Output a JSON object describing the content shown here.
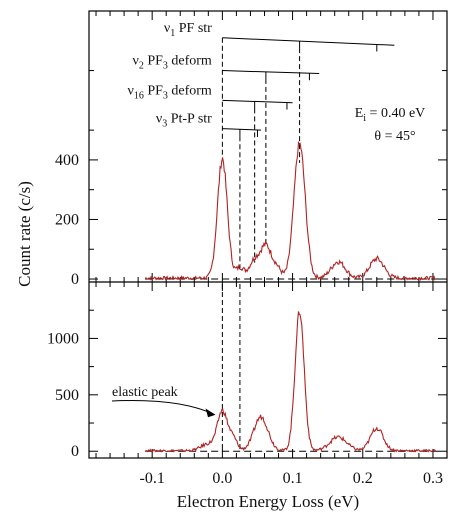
{
  "chart_data": {
    "type": "line",
    "xlabel": "Electron Energy Loss (eV)",
    "ylabel": "Count rate (c/s)",
    "xlim": [
      -0.19,
      0.32
    ],
    "x_ticks": [
      -0.1,
      0.0,
      0.1,
      0.2,
      0.3
    ],
    "x_tick_labels": [
      "-0.1",
      "0.0",
      "0.1",
      "0.2",
      "0.3"
    ],
    "line_color": "#b22222",
    "panels": [
      {
        "name": "top",
        "ylim": [
          -10,
          900
        ],
        "y_ticks": [
          0,
          200,
          400
        ],
        "y_tick_labels": [
          "0",
          "200",
          "400"
        ],
        "conditions": [
          "Eᵢ = 0.40 eV",
          "θ = 45°"
        ],
        "peaks": [
          {
            "center": 0.0,
            "height": 400,
            "width": 0.007
          },
          {
            "center": 0.025,
            "height": 35,
            "width": 0.006
          },
          {
            "center": 0.045,
            "height": 55,
            "width": 0.007
          },
          {
            "center": 0.062,
            "height": 110,
            "width": 0.008
          },
          {
            "center": 0.078,
            "height": 30,
            "width": 0.006
          },
          {
            "center": 0.11,
            "height": 450,
            "width": 0.008
          },
          {
            "center": 0.165,
            "height": 55,
            "width": 0.01
          },
          {
            "center": 0.22,
            "height": 65,
            "width": 0.01
          }
        ],
        "progressions": [
          {
            "mode_label": {
              "sym": "ν",
              "sub": "1",
              "text": "PF str"
            },
            "level": 810,
            "x_start": 0.0,
            "x_end": 0.245,
            "end_level": 785,
            "ticks": [
              0.11,
              0.22
            ],
            "dropline_to": 390
          },
          {
            "mode_label": {
              "sym": "ν",
              "sub": "2",
              "text": "PF",
              "sub2": "3",
              "text2": "deform"
            },
            "level": 700,
            "x_start": 0.0,
            "x_end": 0.138,
            "end_level": 690,
            "ticks": [
              0.062,
              0.124
            ],
            "dropline_to": 110
          },
          {
            "mode_label": {
              "sym": "ν",
              "sub": "16",
              "text": "PF",
              "sub2": "3",
              "text2": "deform"
            },
            "level": 600,
            "x_start": 0.0,
            "x_end": 0.1,
            "end_level": 592,
            "ticks": [
              0.046,
              0.092
            ],
            "dropline_to": 55
          },
          {
            "mode_label": {
              "sym": "ν",
              "sub": "3",
              "text": "Pt-P str"
            },
            "level": 505,
            "x_start": 0.0,
            "x_end": 0.055,
            "end_level": 500,
            "ticks": [
              0.025,
              0.05
            ],
            "dropline_to": 35
          }
        ]
      },
      {
        "name": "bottom",
        "ylim": [
          -60,
          1500
        ],
        "y_ticks": [
          0,
          500,
          1000
        ],
        "y_tick_labels": [
          "0",
          "500",
          "1000"
        ],
        "peaks": [
          {
            "center": -0.02,
            "height": 60,
            "width": 0.01
          },
          {
            "center": 0.0,
            "height": 345,
            "width": 0.007
          },
          {
            "center": 0.015,
            "height": 110,
            "width": 0.006
          },
          {
            "center": 0.055,
            "height": 300,
            "width": 0.01
          },
          {
            "center": 0.11,
            "height": 1235,
            "width": 0.0065
          },
          {
            "center": 0.165,
            "height": 120,
            "width": 0.012
          },
          {
            "center": 0.22,
            "height": 200,
            "width": 0.009
          }
        ],
        "annotation": {
          "text": "elastic peak",
          "x": 0.0,
          "y": 360
        }
      }
    ]
  }
}
